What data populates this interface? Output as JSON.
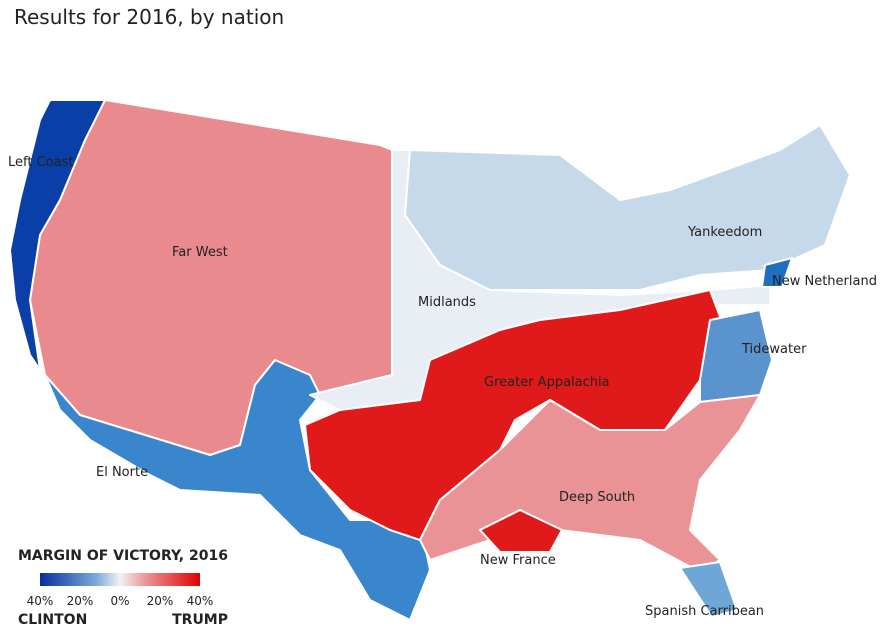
{
  "header": {
    "title": "Results for 2016, by nation"
  },
  "nations": [
    {
      "label": "Far West",
      "color": "#e98a8e"
    },
    {
      "label": "Left Coast",
      "color": "#0a3fa8"
    },
    {
      "label": "El Norte",
      "color": "#3a86cc"
    },
    {
      "label": "Midlands",
      "color": "#e8eef4"
    },
    {
      "label": "Yankeedom",
      "color": "#c5d9ea"
    },
    {
      "label": "New Netherland",
      "color": "#1f6fc0"
    },
    {
      "label": "Greater Appalachia",
      "color": "#e01a1a"
    },
    {
      "label": "Tidewater",
      "color": "#5b93cf"
    },
    {
      "label": "Deep South",
      "color": "#ea9396"
    },
    {
      "label": "New France",
      "color": "#e01a1a"
    },
    {
      "label": "Spanish Carribean",
      "color": "#6ea6d8"
    }
  ],
  "legend": {
    "title": "MARGIN OF VICTORY, 2016",
    "ticks": [
      "40%",
      "20%",
      "0%",
      "20%",
      "40%"
    ],
    "left": "CLINTON",
    "right": "TRUMP"
  }
}
